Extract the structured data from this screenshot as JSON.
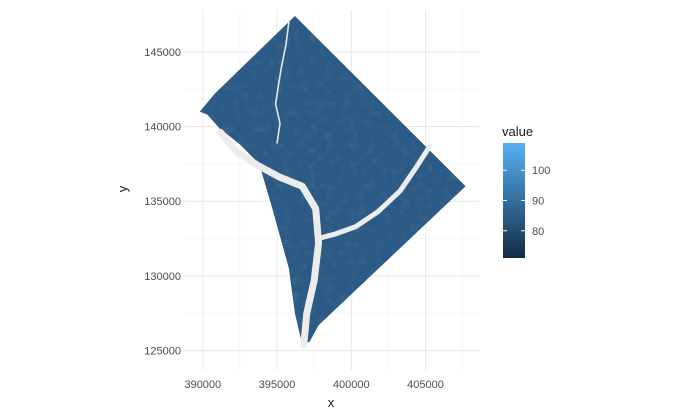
{
  "chart_data": {
    "type": "heatmap",
    "title": "",
    "xlabel": "x",
    "ylabel": "y",
    "xlim": [
      388800,
      408600
    ],
    "ylim": [
      123700,
      147800
    ],
    "x_ticks": [
      390000,
      395000,
      400000,
      405000
    ],
    "x_tick_labels": [
      "390000",
      "395000",
      "400000",
      "405000"
    ],
    "y_ticks": [
      125000,
      130000,
      135000,
      140000,
      145000
    ],
    "y_tick_labels": [
      "125000",
      "130000",
      "135000",
      "140000",
      "145000"
    ],
    "grid": true,
    "legend": {
      "title": "value",
      "placement": "right",
      "range": [
        71,
        109
      ],
      "ticks": [
        80,
        90,
        100
      ],
      "tick_labels": [
        "80",
        "90",
        "100"
      ],
      "low_color": "#132b43",
      "high_color": "#56b1f7"
    },
    "region_outline": [
      [
        396200,
        147400
      ],
      [
        407700,
        136000
      ],
      [
        397800,
        126700
      ],
      [
        397200,
        125600
      ],
      [
        396700,
        125400
      ],
      [
        396200,
        127500
      ],
      [
        395800,
        130500
      ],
      [
        394600,
        134800
      ],
      [
        393800,
        137500
      ],
      [
        392500,
        138800
      ],
      [
        391100,
        139900
      ],
      [
        390300,
        140800
      ],
      [
        389800,
        141000
      ],
      [
        390800,
        142200
      ]
    ],
    "river_main": [
      [
        391200,
        139600
      ],
      [
        392300,
        138300
      ],
      [
        393700,
        137400
      ],
      [
        395200,
        136600
      ],
      [
        396700,
        136000
      ],
      [
        397600,
        134500
      ],
      [
        397800,
        132200
      ],
      [
        397500,
        129700
      ],
      [
        397000,
        127500
      ],
      [
        396800,
        125400
      ]
    ],
    "river_east_branch": [
      [
        405300,
        138700
      ],
      [
        404400,
        137300
      ],
      [
        403300,
        135700
      ],
      [
        401800,
        134300
      ],
      [
        400300,
        133300
      ],
      [
        398900,
        132800
      ],
      [
        397800,
        132500
      ]
    ],
    "creek_rock": [
      [
        395800,
        147000
      ],
      [
        395600,
        145500
      ],
      [
        395300,
        144000
      ],
      [
        395100,
        142800
      ],
      [
        394900,
        141500
      ],
      [
        395200,
        140200
      ],
      [
        395000,
        138900
      ]
    ]
  }
}
